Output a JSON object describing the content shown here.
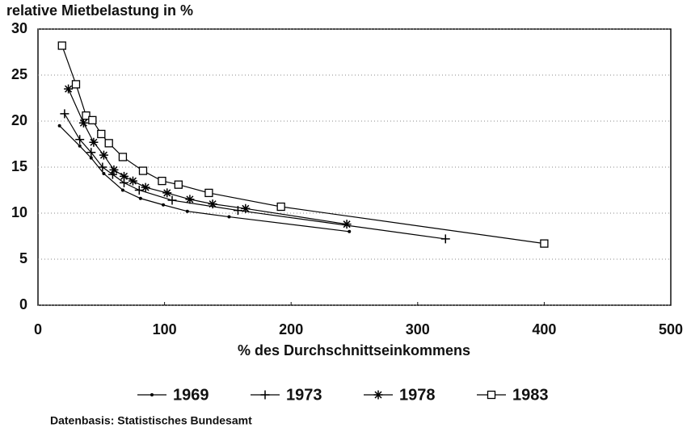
{
  "chart_data": {
    "type": "line",
    "y_label": "relative Mietbelastung in %",
    "x_label": "% des Durchschnittseinkommens",
    "source": "Datenbasis: Statistisches Bundesamt",
    "xlim": [
      0,
      500
    ],
    "xticks": [
      0,
      100,
      200,
      300,
      400,
      500
    ],
    "ylim": [
      0,
      30
    ],
    "yticks": [
      0,
      5,
      10,
      15,
      20,
      25,
      30
    ],
    "grid": true,
    "legend": "bottom",
    "series": [
      {
        "name": "1969",
        "color": "#000000",
        "marker": "dot",
        "x": [
          17,
          33,
          42,
          52,
          67,
          81,
          99,
          118,
          151,
          246
        ],
        "values": [
          19.5,
          17.3,
          16.0,
          14.3,
          12.5,
          11.6,
          10.9,
          10.2,
          9.6,
          8.0
        ]
      },
      {
        "name": "1973",
        "color": "#000000",
        "marker": "plus",
        "x": [
          21,
          33,
          42,
          51,
          59,
          68,
          80,
          106,
          158,
          322
        ],
        "values": [
          20.8,
          18.0,
          16.6,
          15.0,
          14.2,
          13.3,
          12.5,
          11.4,
          10.3,
          7.2
        ]
      },
      {
        "name": "1978",
        "color": "#000000",
        "marker": "star",
        "x": [
          24,
          36,
          44,
          52,
          60,
          68,
          75,
          85,
          102,
          120,
          138,
          164,
          244
        ],
        "values": [
          23.5,
          19.8,
          17.7,
          16.3,
          14.7,
          14.0,
          13.5,
          12.8,
          12.2,
          11.5,
          11.0,
          10.5,
          8.8
        ]
      },
      {
        "name": "1983",
        "color": "#000000",
        "marker": "square",
        "x": [
          19,
          30,
          38,
          43,
          50,
          56,
          67,
          83,
          98,
          111,
          135,
          192,
          400
        ],
        "values": [
          28.2,
          24.0,
          20.6,
          20.1,
          18.6,
          17.6,
          16.1,
          14.6,
          13.5,
          13.1,
          12.2,
          10.7,
          6.7
        ]
      }
    ]
  }
}
